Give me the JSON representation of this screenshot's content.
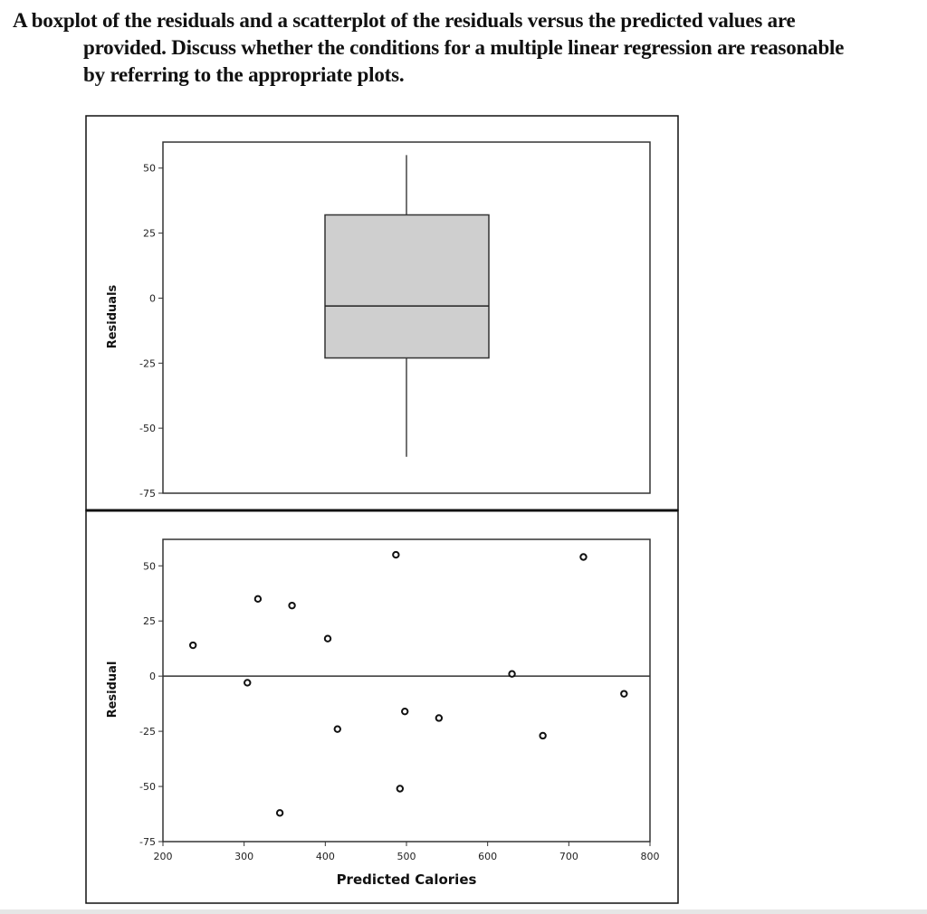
{
  "question": {
    "line1": "A boxplot of the residuals and a scatterplot of the residuals versus the predicted values are",
    "line2": "provided. Discuss whether the conditions for a multiple linear regression are reasonable",
    "line3": "by referring to the appropriate plots."
  },
  "chart_data": [
    {
      "type": "boxplot",
      "ylabel": "Residuals",
      "ylim": [
        -75,
        60
      ],
      "yticks": [
        "50",
        "25",
        "0",
        "-25",
        "-50",
        "-75"
      ],
      "ytick_values": [
        50,
        25,
        0,
        -25,
        -50,
        -75
      ],
      "box": {
        "whisker_low": -61,
        "q1": -23,
        "median": -3,
        "q3": 32,
        "whisker_high": 55
      },
      "fill_color": "#cfcfcf"
    },
    {
      "type": "scatter",
      "xlabel": "Predicted Calories",
      "ylabel": "Residual",
      "xlim": [
        200,
        800
      ],
      "ylim": [
        -75,
        62
      ],
      "xticks": [
        "200",
        "300",
        "400",
        "500",
        "600",
        "700",
        "800"
      ],
      "xtick_values": [
        200,
        300,
        400,
        500,
        600,
        700,
        800
      ],
      "yticks": [
        "50",
        "25",
        "0",
        "-25",
        "-50",
        "-75"
      ],
      "ytick_values": [
        50,
        25,
        0,
        -25,
        -50,
        -75
      ],
      "reference_line": 0,
      "points": [
        {
          "x": 237,
          "y": 14
        },
        {
          "x": 304,
          "y": -3
        },
        {
          "x": 317,
          "y": 35
        },
        {
          "x": 344,
          "y": -62
        },
        {
          "x": 359,
          "y": 32
        },
        {
          "x": 403,
          "y": 17
        },
        {
          "x": 415,
          "y": -24
        },
        {
          "x": 487,
          "y": 55
        },
        {
          "x": 492,
          "y": -51
        },
        {
          "x": 498,
          "y": -16
        },
        {
          "x": 540,
          "y": -19
        },
        {
          "x": 630,
          "y": 1
        },
        {
          "x": 668,
          "y": -27
        },
        {
          "x": 718,
          "y": 54
        },
        {
          "x": 768,
          "y": -8
        }
      ]
    }
  ]
}
